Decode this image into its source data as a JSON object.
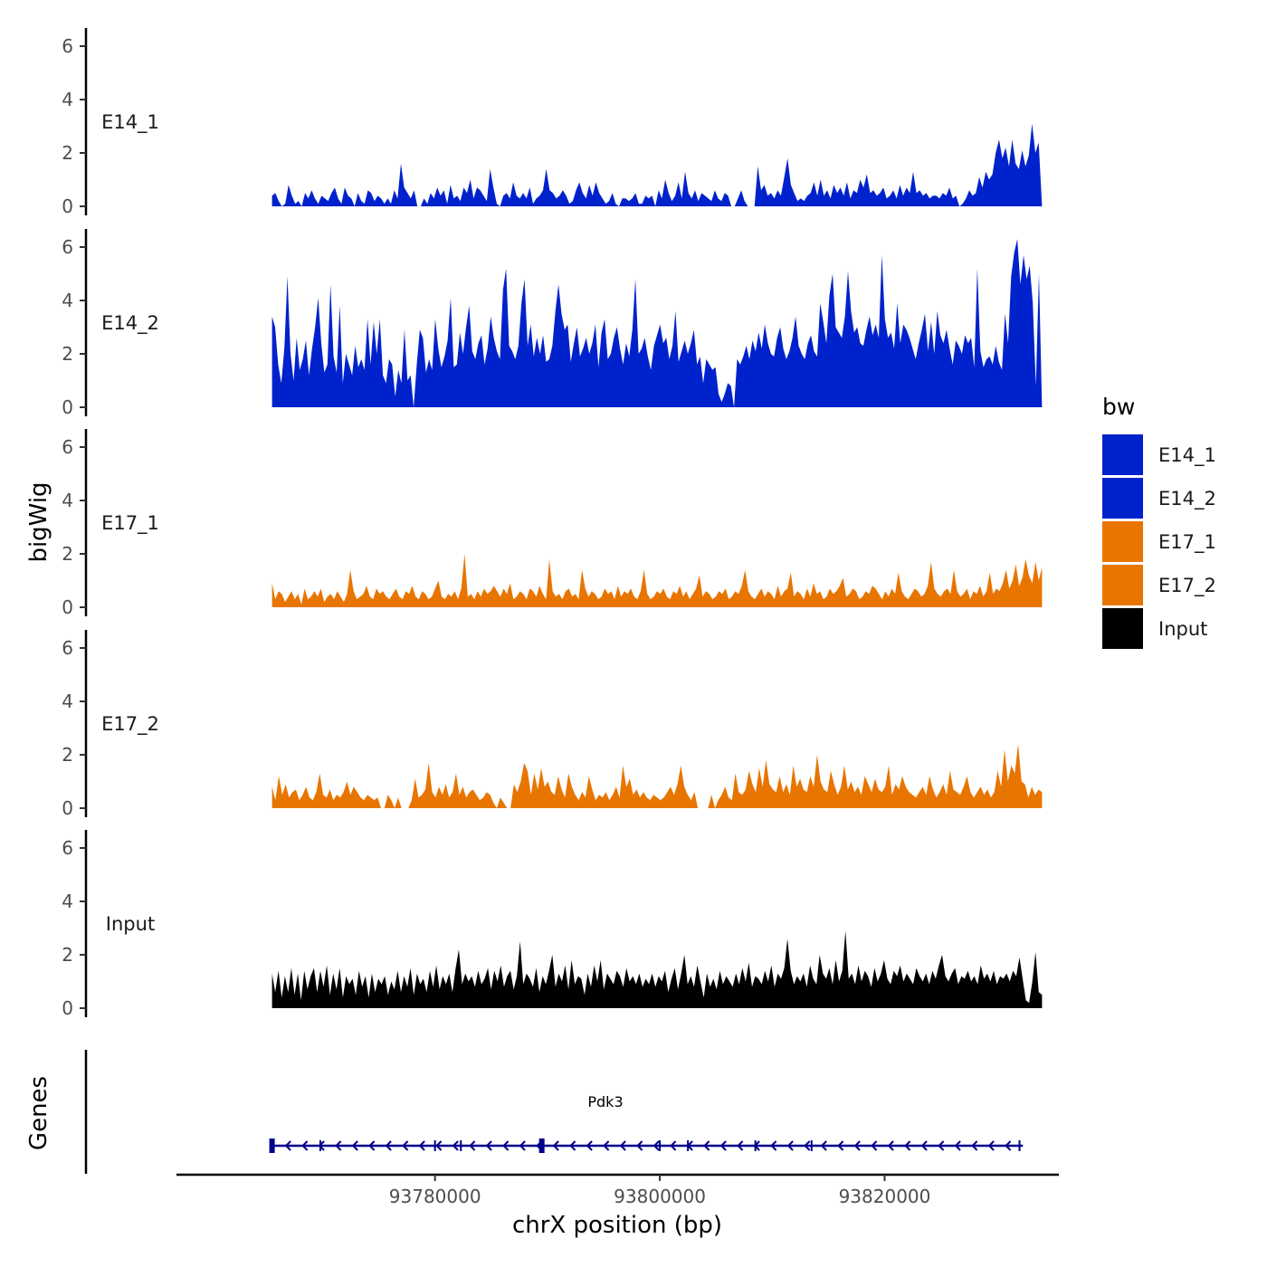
{
  "chart_data": {
    "type": "area",
    "xlabel": "chrX position (bp)",
    "ylabel": "bigWig",
    "gene_panel_label": "Genes",
    "chromosome": "chrX",
    "xlim": [
      93757000,
      93835500
    ],
    "data_range": [
      93765500,
      93834000
    ],
    "x_ticks": [
      93780000,
      93800000,
      93820000
    ],
    "x_tick_labels": [
      "93780000",
      "93800000",
      "93820000"
    ],
    "ylim": [
      0,
      6.6
    ],
    "y_ticks": [
      0,
      2,
      4,
      6
    ],
    "y_tick_labels": [
      "0",
      "2",
      "4",
      "6"
    ],
    "legend": {
      "title": "bw",
      "position": "right",
      "entries": [
        {
          "label": "E14_1",
          "color": "#0022CC"
        },
        {
          "label": "E14_2",
          "color": "#0022CC"
        },
        {
          "label": "E17_1",
          "color": "#E87500"
        },
        {
          "label": "E17_2",
          "color": "#E87500"
        },
        {
          "label": "Input",
          "color": "#000000"
        }
      ]
    },
    "tracks": [
      {
        "name": "E14_1",
        "color": "#0022CC",
        "values": [
          0.4,
          0.5,
          0.2,
          0.0,
          0.1,
          0.8,
          0.4,
          0.1,
          0.2,
          0.0,
          0.5,
          0.3,
          0.6,
          0.3,
          0.1,
          0.4,
          0.3,
          0.2,
          0.5,
          0.7,
          0.3,
          0.1,
          0.7,
          0.4,
          0.3,
          0.0,
          0.5,
          0.2,
          0.1,
          0.6,
          0.5,
          0.2,
          0.4,
          0.3,
          0.1,
          0.3,
          0.1,
          0.6,
          0.3,
          1.6,
          0.7,
          0.5,
          0.3,
          0.6,
          0.0,
          0.0,
          0.3,
          0.1,
          0.5,
          0.3,
          0.7,
          0.4,
          0.6,
          0.1,
          0.8,
          0.3,
          0.4,
          0.2,
          0.7,
          0.5,
          1.0,
          0.3,
          0.7,
          0.6,
          0.4,
          0.2,
          1.4,
          0.7,
          0.1,
          0.0,
          0.4,
          0.5,
          0.3,
          0.9,
          0.4,
          0.3,
          0.5,
          0.3,
          0.7,
          0.1,
          0.3,
          0.4,
          0.6,
          1.4,
          0.6,
          0.5,
          0.3,
          0.4,
          0.6,
          0.4,
          0.1,
          0.2,
          0.6,
          0.9,
          0.5,
          0.3,
          0.8,
          0.4,
          0.9,
          0.5,
          0.3,
          0.1,
          0.2,
          0.5,
          0.1,
          0.0,
          0.3,
          0.3,
          0.2,
          0.3,
          0.5,
          0.1,
          0.1,
          0.4,
          0.3,
          0.4,
          0.0,
          0.6,
          0.3,
          1.0,
          0.5,
          0.2,
          0.4,
          0.9,
          0.3,
          1.3,
          0.5,
          0.3,
          0.6,
          0.2,
          0.5,
          0.4,
          0.3,
          0.2,
          0.6,
          0.3,
          0.2,
          0.5,
          0.4,
          0.0,
          0.0,
          0.3,
          0.6,
          0.2,
          0.0,
          0.0,
          0.0,
          1.5,
          0.6,
          0.8,
          0.4,
          0.5,
          0.3,
          0.6,
          0.4,
          1.1,
          1.8,
          0.8,
          0.5,
          0.2,
          0.3,
          0.2,
          0.4,
          0.5,
          0.9,
          0.4,
          1.0,
          0.4,
          0.6,
          0.3,
          0.8,
          0.5,
          0.7,
          0.4,
          0.9,
          0.3,
          0.6,
          0.5,
          1.0,
          0.7,
          1.2,
          0.5,
          0.6,
          0.4,
          0.5,
          0.7,
          0.3,
          0.4,
          0.6,
          0.3,
          0.8,
          0.4,
          0.7,
          0.5,
          1.3,
          0.5,
          0.6,
          0.4,
          0.5,
          0.3,
          0.4,
          0.4,
          0.3,
          0.5,
          0.4,
          0.7,
          0.3,
          0.4,
          0.0,
          0.1,
          0.3,
          0.6,
          0.4,
          0.5,
          1.1,
          0.7,
          1.3,
          1.0,
          1.2,
          2.0,
          2.5,
          1.8,
          2.2,
          1.5,
          2.5,
          1.6,
          1.4,
          2.1,
          1.5,
          1.9,
          3.1,
          2.0,
          2.4,
          0.0
        ]
      },
      {
        "name": "E14_2",
        "color": "#0022CC",
        "values": [
          3.4,
          3.0,
          1.6,
          0.9,
          2.2,
          4.9,
          2.0,
          1.0,
          2.6,
          1.4,
          1.8,
          2.5,
          1.2,
          2.2,
          3.0,
          4.1,
          2.4,
          1.3,
          1.6,
          4.6,
          1.9,
          1.3,
          3.8,
          0.9,
          2.0,
          1.6,
          1.2,
          2.3,
          1.5,
          1.8,
          1.4,
          3.3,
          1.6,
          3.2,
          2.0,
          3.3,
          1.2,
          0.9,
          1.8,
          1.6,
          0.4,
          1.4,
          0.9,
          2.9,
          1.0,
          1.2,
          0.0,
          1.6,
          2.9,
          2.6,
          1.3,
          1.8,
          1.4,
          3.3,
          2.2,
          1.5,
          1.9,
          2.5,
          4.1,
          1.5,
          1.6,
          2.8,
          2.0,
          3.0,
          3.8,
          2.1,
          1.8,
          2.4,
          2.7,
          1.6,
          2.2,
          3.4,
          2.6,
          2.1,
          1.8,
          4.4,
          5.2,
          2.3,
          2.1,
          1.8,
          2.3,
          3.9,
          4.8,
          2.3,
          3.1,
          1.9,
          2.6,
          2.0,
          2.7,
          1.7,
          1.8,
          2.3,
          3.6,
          4.6,
          3.5,
          2.9,
          3.1,
          1.7,
          2.4,
          3.0,
          1.9,
          2.2,
          2.6,
          2.0,
          2.4,
          3.1,
          1.5,
          2.8,
          3.3,
          1.8,
          2.0,
          2.6,
          3.0,
          2.2,
          1.6,
          2.4,
          1.9,
          2.9,
          4.8,
          2.0,
          2.2,
          2.6,
          1.9,
          1.4,
          2.3,
          2.7,
          3.1,
          2.4,
          2.6,
          1.8,
          2.3,
          3.6,
          1.7,
          2.1,
          2.5,
          2.0,
          2.4,
          2.9,
          1.6,
          1.9,
          0.9,
          1.8,
          1.6,
          1.4,
          1.5,
          0.5,
          0.2,
          0.5,
          0.9,
          0.8,
          0.0,
          1.8,
          1.6,
          1.9,
          2.3,
          1.8,
          2.5,
          2.1,
          2.8,
          2.2,
          3.1,
          2.4,
          2.0,
          1.9,
          2.6,
          3.0,
          2.2,
          1.8,
          2.1,
          2.6,
          3.4,
          2.3,
          2.0,
          1.8,
          2.4,
          2.7,
          2.1,
          1.9,
          3.9,
          3.2,
          2.4,
          4.2,
          5.0,
          3.0,
          2.8,
          2.6,
          3.4,
          5.1,
          3.6,
          2.8,
          3.0,
          2.4,
          2.3,
          2.9,
          3.4,
          2.7,
          3.1,
          2.6,
          5.7,
          3.3,
          2.6,
          2.8,
          2.2,
          3.9,
          2.4,
          3.1,
          2.9,
          2.6,
          2.2,
          1.8,
          2.4,
          2.9,
          3.5,
          2.1,
          3.2,
          2.0,
          3.6,
          2.7,
          2.4,
          2.9,
          2.2,
          1.6,
          2.5,
          2.3,
          2.0,
          2.7,
          2.4,
          2.6,
          1.5,
          5.2,
          2.1,
          1.5,
          1.8,
          1.9,
          1.6,
          2.3,
          1.7,
          1.4,
          3.5,
          2.4,
          4.9,
          5.8,
          6.3,
          4.6,
          5.7,
          4.8,
          5.3,
          3.9,
          0.8,
          5.0,
          0.0
        ]
      },
      {
        "name": "E17_1",
        "color": "#E87500",
        "values": [
          0.9,
          0.3,
          0.6,
          0.5,
          0.2,
          0.4,
          0.6,
          0.3,
          0.5,
          0.1,
          0.7,
          0.3,
          0.4,
          0.6,
          0.4,
          0.7,
          0.2,
          0.4,
          0.5,
          0.3,
          0.6,
          0.4,
          0.2,
          0.5,
          1.4,
          0.6,
          0.3,
          0.4,
          0.5,
          0.8,
          0.4,
          0.3,
          0.7,
          0.5,
          0.6,
          0.4,
          0.3,
          0.5,
          0.7,
          0.4,
          0.3,
          0.6,
          0.5,
          0.8,
          0.4,
          0.3,
          0.6,
          0.5,
          0.3,
          0.4,
          0.7,
          1.0,
          0.4,
          0.3,
          0.5,
          0.4,
          0.6,
          0.3,
          0.7,
          2.0,
          0.4,
          0.5,
          0.3,
          0.6,
          0.4,
          0.7,
          0.5,
          0.6,
          0.8,
          0.6,
          0.4,
          0.7,
          0.5,
          0.9,
          0.3,
          0.4,
          0.6,
          0.5,
          0.3,
          0.7,
          0.6,
          0.4,
          0.8,
          0.5,
          0.3,
          1.8,
          0.6,
          0.4,
          0.5,
          0.3,
          0.6,
          0.7,
          0.4,
          0.5,
          0.3,
          1.4,
          0.7,
          0.4,
          0.6,
          0.5,
          0.3,
          0.4,
          0.7,
          0.5,
          0.6,
          0.3,
          0.8,
          0.4,
          0.6,
          0.5,
          0.7,
          0.4,
          0.3,
          0.6,
          1.4,
          0.5,
          0.3,
          0.4,
          0.6,
          0.5,
          0.7,
          0.4,
          0.3,
          0.6,
          0.5,
          0.8,
          0.4,
          0.6,
          0.3,
          0.5,
          0.7,
          1.2,
          0.4,
          0.6,
          0.5,
          0.3,
          0.4,
          0.6,
          0.5,
          0.7,
          0.3,
          0.4,
          0.6,
          0.5,
          0.8,
          1.4,
          0.6,
          0.4,
          0.3,
          0.5,
          0.7,
          0.4,
          0.6,
          0.5,
          0.3,
          0.8,
          0.4,
          0.6,
          0.7,
          1.3,
          0.4,
          0.6,
          0.5,
          0.3,
          0.7,
          0.4,
          0.9,
          0.5,
          0.6,
          0.3,
          0.4,
          0.7,
          0.5,
          0.6,
          0.8,
          1.1,
          0.4,
          0.5,
          0.7,
          0.6,
          0.3,
          0.4,
          0.6,
          0.5,
          0.8,
          0.7,
          0.5,
          0.3,
          0.6,
          0.4,
          0.7,
          0.5,
          1.3,
          0.6,
          0.4,
          0.3,
          0.5,
          0.7,
          0.6,
          0.4,
          0.5,
          0.8,
          1.7,
          0.7,
          0.5,
          0.4,
          0.6,
          0.7,
          0.5,
          1.4,
          0.6,
          0.4,
          0.5,
          0.7,
          0.3,
          0.6,
          0.5,
          0.8,
          0.4,
          0.6,
          1.3,
          0.5,
          0.7,
          0.6,
          0.9,
          1.4,
          0.7,
          1.0,
          1.6,
          0.8,
          1.1,
          1.8,
          1.2,
          0.9,
          1.7,
          1.0,
          1.5
        ]
      },
      {
        "name": "E17_2",
        "color": "#E87500",
        "values": [
          0.8,
          0.3,
          1.2,
          0.5,
          0.9,
          0.4,
          0.6,
          0.7,
          0.3,
          0.5,
          0.8,
          0.4,
          0.3,
          0.6,
          1.3,
          0.5,
          0.4,
          0.7,
          0.3,
          0.5,
          0.4,
          0.6,
          1.0,
          0.5,
          0.8,
          0.6,
          0.4,
          0.3,
          0.5,
          0.4,
          0.3,
          0.4,
          0.0,
          0.0,
          0.5,
          0.3,
          0.0,
          0.4,
          0.0,
          0.0,
          0.0,
          0.3,
          1.1,
          0.4,
          0.5,
          0.7,
          1.7,
          0.6,
          0.4,
          0.8,
          0.5,
          0.9,
          0.4,
          0.6,
          1.3,
          0.5,
          0.8,
          0.4,
          0.6,
          0.7,
          0.5,
          0.3,
          0.4,
          0.6,
          0.5,
          0.2,
          0.0,
          0.4,
          0.2,
          0.0,
          0.0,
          0.9,
          0.6,
          1.0,
          1.7,
          1.4,
          0.5,
          1.3,
          0.7,
          1.5,
          0.8,
          1.0,
          0.6,
          0.5,
          1.2,
          0.7,
          0.4,
          1.3,
          0.8,
          0.5,
          0.3,
          0.6,
          0.4,
          1.2,
          0.7,
          0.3,
          0.5,
          0.4,
          0.6,
          0.3,
          0.5,
          0.8,
          0.4,
          1.6,
          0.8,
          1.1,
          0.5,
          0.7,
          0.4,
          0.6,
          0.4,
          0.3,
          0.5,
          0.4,
          0.3,
          0.4,
          0.6,
          0.8,
          0.5,
          0.9,
          1.6,
          0.8,
          0.5,
          0.3,
          0.6,
          0.0,
          0.0,
          0.0,
          0.0,
          0.5,
          0.0,
          0.3,
          0.5,
          0.8,
          0.4,
          0.3,
          1.3,
          0.6,
          0.5,
          0.7,
          1.4,
          0.9,
          0.6,
          1.5,
          0.8,
          1.8,
          0.9,
          0.7,
          0.6,
          1.2,
          0.6,
          0.9,
          0.5,
          1.6,
          0.8,
          1.1,
          0.7,
          0.6,
          1.2,
          0.8,
          2.0,
          1.0,
          0.7,
          0.6,
          1.4,
          0.9,
          0.5,
          0.8,
          1.6,
          0.7,
          1.0,
          0.6,
          0.8,
          0.5,
          1.2,
          0.9,
          0.6,
          1.1,
          0.7,
          0.6,
          0.8,
          1.6,
          0.5,
          0.9,
          0.7,
          1.2,
          0.8,
          0.6,
          0.5,
          0.4,
          0.6,
          0.8,
          0.5,
          1.2,
          0.7,
          0.4,
          0.6,
          0.9,
          0.5,
          1.4,
          0.7,
          0.6,
          0.5,
          0.8,
          1.2,
          0.6,
          0.4,
          0.6,
          0.8,
          0.5,
          0.7,
          0.4,
          0.6,
          1.4,
          0.8,
          2.2,
          1.0,
          1.6,
          1.3,
          2.4,
          1.0,
          0.9,
          0.4,
          0.8,
          0.5,
          0.7,
          0.6
        ]
      },
      {
        "name": "Input",
        "color": "#000000",
        "values": [
          1.3,
          0.6,
          1.4,
          0.4,
          1.2,
          0.6,
          1.5,
          0.5,
          1.3,
          0.3,
          1.4,
          0.7,
          1.2,
          1.5,
          0.6,
          1.4,
          0.8,
          1.6,
          0.5,
          1.3,
          0.7,
          1.5,
          0.4,
          1.2,
          0.9,
          1.1,
          0.5,
          1.4,
          0.8,
          1.2,
          0.4,
          1.3,
          0.6,
          1.1,
          0.9,
          1.2,
          0.5,
          1.0,
          0.7,
          1.4,
          0.6,
          1.2,
          0.8,
          1.5,
          0.5,
          1.3,
          0.9,
          1.1,
          0.6,
          1.4,
          0.8,
          1.6,
          0.7,
          1.2,
          0.9,
          1.3,
          0.6,
          1.5,
          2.2,
          0.9,
          1.3,
          1.0,
          1.2,
          0.8,
          1.4,
          0.9,
          1.1,
          1.5,
          0.7,
          1.4,
          1.0,
          1.6,
          0.8,
          1.2,
          1.4,
          0.7,
          1.2,
          2.5,
          0.9,
          1.3,
          1.1,
          0.8,
          1.5,
          0.6,
          1.2,
          0.9,
          1.4,
          2.0,
          0.8,
          1.3,
          1.0,
          1.6,
          0.7,
          1.8,
          0.9,
          1.2,
          1.1,
          0.5,
          1.3,
          0.8,
          1.6,
          1.0,
          1.8,
          0.7,
          1.3,
          1.1,
          0.9,
          1.4,
          1.2,
          0.8,
          1.5,
          1.0,
          1.2,
          0.9,
          1.3,
          0.8,
          1.1,
          0.9,
          1.3,
          0.8,
          1.2,
          1.0,
          1.4,
          0.6,
          1.1,
          1.5,
          0.7,
          1.3,
          2.0,
          0.9,
          1.2,
          0.8,
          1.6,
          1.0,
          0.4,
          1.3,
          0.8,
          1.1,
          0.7,
          1.4,
          0.9,
          1.2,
          1.0,
          0.8,
          1.3,
          0.9,
          1.5,
          1.0,
          1.7,
          0.8,
          1.2,
          1.1,
          0.9,
          1.4,
          1.0,
          1.6,
          0.8,
          1.3,
          1.1,
          1.5,
          2.6,
          1.4,
          0.9,
          1.2,
          1.0,
          1.3,
          0.8,
          1.6,
          1.1,
          0.9,
          2.0,
          1.3,
          1.1,
          1.5,
          0.9,
          1.8,
          1.0,
          1.4,
          2.9,
          1.1,
          1.3,
          0.9,
          1.6,
          1.0,
          1.4,
          1.2,
          0.8,
          1.5,
          1.0,
          1.3,
          1.8,
          1.1,
          0.9,
          1.4,
          1.2,
          1.6,
          1.0,
          1.3,
          1.1,
          0.9,
          1.5,
          1.2,
          1.0,
          1.3,
          0.9,
          1.4,
          1.1,
          1.6,
          2.0,
          1.2,
          1.0,
          1.3,
          1.5,
          0.9,
          1.2,
          1.1,
          1.4,
          1.0,
          1.2,
          0.9,
          1.6,
          1.1,
          1.3,
          1.0,
          1.4,
          0.9,
          1.2,
          1.1,
          1.3,
          1.0,
          1.4,
          1.2,
          1.9,
          1.1,
          0.3,
          0.2,
          1.0,
          2.1,
          0.6,
          0.5
        ]
      }
    ],
    "gene": {
      "name": "Pdk3",
      "strand": "-",
      "start": 93765300,
      "end": 93832300,
      "exons": [
        93765500,
        93769800,
        93780000,
        93782300,
        93789500,
        93800000,
        93802500,
        93808500,
        93813500,
        93832000
      ],
      "color": "#00008B"
    }
  }
}
